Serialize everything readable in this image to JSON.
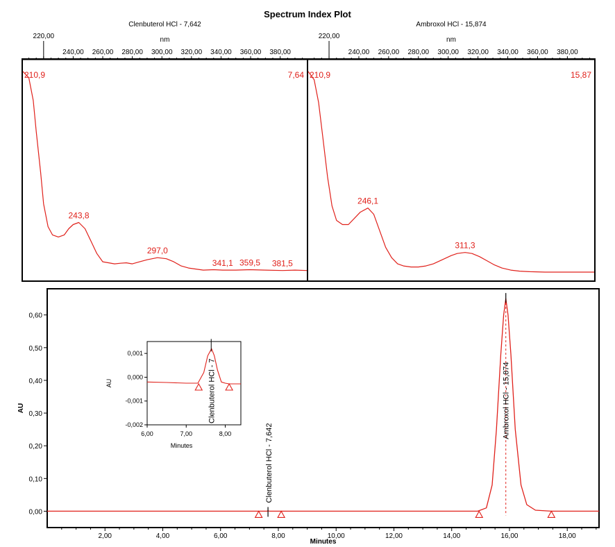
{
  "title": "Spectrum Index Plot",
  "colors": {
    "trace": "#e0201a",
    "axis": "#000000"
  },
  "chart_data": [
    {
      "type": "line",
      "name": "spectrum-clenbuterol",
      "title": "Clenbuterol HCl - 7,642",
      "xlabel": "nm",
      "xlim": [
        206,
        398
      ],
      "x_ticks": [
        "220,00",
        "240,00",
        "260,00",
        "280,00",
        "300,00",
        "320,00",
        "340,00",
        "360,00",
        "380,00"
      ],
      "x_tick_values": [
        220,
        240,
        260,
        280,
        300,
        320,
        340,
        360,
        380
      ],
      "ylim": [
        0,
        1
      ],
      "x": [
        206,
        210,
        213,
        215,
        218,
        220,
        223,
        226,
        230,
        234,
        237,
        240,
        243.8,
        248,
        252,
        256,
        260,
        264,
        268,
        272,
        276,
        280,
        285,
        290,
        297,
        303,
        308,
        313,
        318,
        323,
        328,
        335,
        341.1,
        350,
        359.5,
        370,
        381.5,
        390,
        398
      ],
      "y": [
        0.99,
        0.96,
        0.85,
        0.7,
        0.5,
        0.35,
        0.24,
        0.2,
        0.19,
        0.2,
        0.23,
        0.25,
        0.26,
        0.23,
        0.17,
        0.11,
        0.07,
        0.065,
        0.06,
        0.063,
        0.065,
        0.06,
        0.07,
        0.08,
        0.09,
        0.085,
        0.07,
        0.05,
        0.04,
        0.035,
        0.03,
        0.032,
        0.03,
        0.03,
        0.032,
        0.03,
        0.028,
        0.03,
        0.028
      ],
      "labels": [
        {
          "text": "210,9",
          "x": 210.9,
          "y": 0.99,
          "pos": "top-left"
        },
        {
          "text": "7,64",
          "pos": "top-right"
        },
        {
          "text": "243,8",
          "x": 243.8,
          "y": 0.26
        },
        {
          "text": "297,0",
          "x": 297.0,
          "y": 0.09
        },
        {
          "text": "341,1",
          "x": 341.1,
          "y": 0.03
        },
        {
          "text": "359,5",
          "x": 359.5,
          "y": 0.032
        },
        {
          "text": "381,5",
          "x": 381.5,
          "y": 0.028
        }
      ]
    },
    {
      "type": "line",
      "name": "spectrum-ambroxol",
      "title": "Ambroxol HCl - 15,874",
      "xlabel": "nm",
      "xlim": [
        206,
        398
      ],
      "x_ticks": [
        "220,00",
        "240,00",
        "260,00",
        "280,00",
        "300,00",
        "320,00",
        "340,00",
        "360,00",
        "380,00"
      ],
      "x_tick_values": [
        220,
        240,
        260,
        280,
        300,
        320,
        340,
        360,
        380
      ],
      "ylim": [
        0,
        1
      ],
      "x": [
        206,
        210,
        213,
        216,
        219,
        222,
        225,
        229,
        233,
        237,
        241,
        246.1,
        250,
        254,
        258,
        262,
        266,
        270,
        275,
        280,
        285,
        290,
        296,
        302,
        306,
        311.3,
        316,
        321,
        326,
        331,
        336,
        342,
        348,
        355,
        365,
        375,
        385,
        398
      ],
      "y": [
        0.99,
        0.95,
        0.84,
        0.66,
        0.48,
        0.34,
        0.27,
        0.25,
        0.25,
        0.28,
        0.31,
        0.33,
        0.3,
        0.22,
        0.14,
        0.09,
        0.06,
        0.05,
        0.045,
        0.045,
        0.05,
        0.06,
        0.08,
        0.1,
        0.11,
        0.115,
        0.11,
        0.095,
        0.075,
        0.055,
        0.04,
        0.03,
        0.025,
        0.022,
        0.02,
        0.02,
        0.02,
        0.02
      ],
      "labels": [
        {
          "text": "210,9",
          "x": 210.9,
          "y": 0.99,
          "pos": "top-left"
        },
        {
          "text": "15,87",
          "pos": "top-right"
        },
        {
          "text": "246,1",
          "x": 246.1,
          "y": 0.33
        },
        {
          "text": "311,3",
          "x": 311.3,
          "y": 0.115
        }
      ]
    },
    {
      "type": "line",
      "name": "chromatogram",
      "title": "",
      "xlabel": "Minutes",
      "ylabel": "AU",
      "xlim": [
        0,
        19.1
      ],
      "ylim": [
        -0.05,
        0.68
      ],
      "x_ticks": [
        "2,00",
        "4,00",
        "6,00",
        "8,00",
        "10,00",
        "12,00",
        "14,00",
        "16,00",
        "18,00"
      ],
      "x_tick_values": [
        2,
        4,
        6,
        8,
        10,
        12,
        14,
        16,
        18
      ],
      "y_ticks": [
        "0,00",
        "0,10",
        "0,20",
        "0,30",
        "0,40",
        "0,50",
        "0,60"
      ],
      "y_tick_values": [
        0,
        0.1,
        0.2,
        0.3,
        0.4,
        0.5,
        0.6
      ],
      "x": [
        0,
        7.3,
        7.6,
        7.64,
        7.7,
        8.0,
        14.9,
        15.2,
        15.4,
        15.55,
        15.7,
        15.8,
        15.874,
        15.95,
        16.05,
        16.2,
        16.4,
        16.6,
        16.9,
        17.45,
        19.1
      ],
      "y": [
        0,
        0,
        0,
        0.001,
        0,
        0,
        0,
        0.01,
        0.08,
        0.25,
        0.48,
        0.6,
        0.65,
        0.6,
        0.48,
        0.25,
        0.08,
        0.02,
        0.003,
        0,
        0
      ],
      "peaks": [
        {
          "label": "Clenbuterol HCl - 7,642",
          "x": 7.642
        },
        {
          "label": "Ambroxol HCl - 15,874",
          "x": 15.874
        }
      ],
      "markers": [
        7.32,
        8.1,
        14.95,
        17.45
      ]
    },
    {
      "type": "line",
      "name": "chromatogram-inset",
      "xlabel": "Minutes",
      "ylabel": "AU",
      "xlim": [
        6.0,
        8.4
      ],
      "ylim": [
        -0.002,
        0.0015
      ],
      "x_ticks": [
        "6,00",
        "7,00",
        "8,00"
      ],
      "x_tick_values": [
        6,
        7,
        8
      ],
      "y_ticks": [
        "0,001",
        "0,000",
        "-0,001",
        "-0,002"
      ],
      "y_tick_values": [
        0.001,
        0,
        -0.001,
        -0.002
      ],
      "x": [
        6.0,
        6.5,
        7.0,
        7.3,
        7.45,
        7.55,
        7.65,
        7.72,
        7.8,
        7.9,
        8.0,
        8.1,
        8.4
      ],
      "y": [
        -0.0002,
        -0.00022,
        -0.00025,
        -0.00025,
        0.0002,
        0.0009,
        0.0012,
        0.0009,
        0.0003,
        -0.0002,
        -0.00025,
        -0.00028,
        -0.00028
      ],
      "peak_label": "Clenbuterol HCl - 7",
      "peak_x": 7.64,
      "markers": [
        7.32,
        8.1
      ]
    }
  ]
}
